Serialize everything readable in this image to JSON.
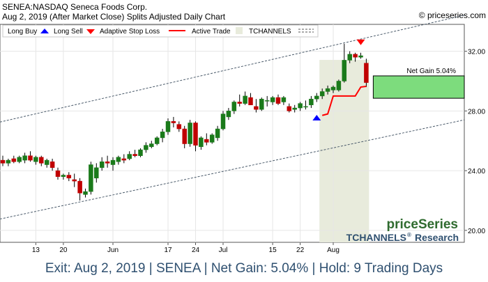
{
  "header": {
    "line1": "SENEA:NASDAQ Seneca Foods Corp.",
    "line2": "Aug 2, 2019 (After Market Close)  Splits Adjusted Daily Chart",
    "copyright": "© priceseries.com"
  },
  "legend": {
    "long_buy": "Long Buy",
    "long_sell": "Long Sell",
    "stop_loss": "Adaptive Stop Loss",
    "active_trade": "Active Trade",
    "tchannels": "TCHANNELS"
  },
  "net_gain_label": "Net Gain 5.04%",
  "watermark": {
    "brand": "priceSeries",
    "tchannels": "TCHANNELS",
    "research": "Research",
    "reg": "®"
  },
  "footer": "Exit: Aug 2, 2019 | SENEA | Net Gain: 5.04% | Hold: 9 Trading Days",
  "colors": {
    "up": "#1a7a1a",
    "down": "#c00000",
    "stop": "#ff0000",
    "active_band": "#e8ebdc",
    "gain_box": "#7ddc7d",
    "buy_arrow": "#0000ff",
    "sell_arrow": "#ff0000",
    "footer_text": "#2f5070"
  },
  "chart_data": {
    "type": "candlestick",
    "ylim": [
      19.2,
      33.8
    ],
    "y_ticks": [
      "32.00",
      "28.00",
      "24.00",
      "20.00"
    ],
    "y_tick_values": [
      32,
      28,
      24,
      20
    ],
    "x_tick_labels": [
      "13",
      "20",
      "Jun",
      "17",
      "24",
      "Jul",
      "15",
      "22",
      "Aug"
    ],
    "x_tick_index": [
      6,
      11,
      20,
      30,
      35,
      40,
      49,
      54,
      60
    ],
    "candles": [
      {
        "o": 24.7,
        "h": 25.0,
        "l": 24.3,
        "c": 24.5
      },
      {
        "o": 24.5,
        "h": 24.8,
        "l": 24.3,
        "c": 24.7
      },
      {
        "o": 24.8,
        "h": 25.0,
        "l": 24.5,
        "c": 24.6
      },
      {
        "o": 24.6,
        "h": 25.0,
        "l": 24.5,
        "c": 24.9
      },
      {
        "o": 24.7,
        "h": 25.2,
        "l": 24.5,
        "c": 25.0
      },
      {
        "o": 25.0,
        "h": 25.3,
        "l": 24.6,
        "c": 24.7
      },
      {
        "o": 24.6,
        "h": 25.0,
        "l": 24.4,
        "c": 24.9
      },
      {
        "o": 24.9,
        "h": 25.0,
        "l": 24.3,
        "c": 24.5
      },
      {
        "o": 24.4,
        "h": 24.8,
        "l": 24.2,
        "c": 24.7
      },
      {
        "o": 24.6,
        "h": 24.8,
        "l": 24.0,
        "c": 24.2
      },
      {
        "o": 24.0,
        "h": 24.2,
        "l": 23.4,
        "c": 23.6
      },
      {
        "o": 23.6,
        "h": 23.8,
        "l": 23.4,
        "c": 23.7
      },
      {
        "o": 23.7,
        "h": 23.9,
        "l": 23.3,
        "c": 23.5
      },
      {
        "o": 23.4,
        "h": 23.8,
        "l": 22.9,
        "c": 23.3
      },
      {
        "o": 23.3,
        "h": 23.5,
        "l": 22.0,
        "c": 22.5
      },
      {
        "o": 22.4,
        "h": 22.8,
        "l": 22.2,
        "c": 22.6
      },
      {
        "o": 22.6,
        "h": 24.6,
        "l": 22.4,
        "c": 24.4
      },
      {
        "o": 23.5,
        "h": 24.5,
        "l": 23.2,
        "c": 24.2
      },
      {
        "o": 24.2,
        "h": 24.9,
        "l": 24.0,
        "c": 24.6
      },
      {
        "o": 24.6,
        "h": 25.0,
        "l": 24.2,
        "c": 24.5
      },
      {
        "o": 24.4,
        "h": 24.9,
        "l": 24.0,
        "c": 24.7
      },
      {
        "o": 24.6,
        "h": 25.0,
        "l": 24.4,
        "c": 24.9
      },
      {
        "o": 24.8,
        "h": 25.1,
        "l": 24.5,
        "c": 24.7
      },
      {
        "o": 24.8,
        "h": 25.3,
        "l": 24.7,
        "c": 25.1
      },
      {
        "o": 25.1,
        "h": 25.4,
        "l": 24.9,
        "c": 25.0
      },
      {
        "o": 25.0,
        "h": 25.5,
        "l": 24.9,
        "c": 25.4
      },
      {
        "o": 25.4,
        "h": 25.9,
        "l": 25.2,
        "c": 25.7
      },
      {
        "o": 25.6,
        "h": 26.0,
        "l": 25.5,
        "c": 25.8
      },
      {
        "o": 25.8,
        "h": 26.3,
        "l": 25.7,
        "c": 26.2
      },
      {
        "o": 26.2,
        "h": 26.8,
        "l": 25.9,
        "c": 26.6
      },
      {
        "o": 26.6,
        "h": 27.5,
        "l": 26.4,
        "c": 27.3
      },
      {
        "o": 27.3,
        "h": 27.6,
        "l": 26.9,
        "c": 27.2
      },
      {
        "o": 27.1,
        "h": 27.3,
        "l": 26.6,
        "c": 26.8
      },
      {
        "o": 26.8,
        "h": 27.0,
        "l": 25.5,
        "c": 25.8
      },
      {
        "o": 25.8,
        "h": 27.4,
        "l": 25.6,
        "c": 27.2
      },
      {
        "o": 27.2,
        "h": 27.3,
        "l": 25.3,
        "c": 25.7
      },
      {
        "o": 25.6,
        "h": 26.3,
        "l": 25.4,
        "c": 26.2
      },
      {
        "o": 26.1,
        "h": 26.5,
        "l": 25.7,
        "c": 25.9
      },
      {
        "o": 25.9,
        "h": 26.5,
        "l": 25.8,
        "c": 26.4
      },
      {
        "o": 26.2,
        "h": 27.0,
        "l": 26.0,
        "c": 26.8
      },
      {
        "o": 26.8,
        "h": 28.0,
        "l": 26.7,
        "c": 27.8
      },
      {
        "o": 27.6,
        "h": 28.2,
        "l": 27.4,
        "c": 28.0
      },
      {
        "o": 28.0,
        "h": 28.7,
        "l": 27.8,
        "c": 28.6
      },
      {
        "o": 28.6,
        "h": 29.1,
        "l": 28.3,
        "c": 28.5
      },
      {
        "o": 28.5,
        "h": 29.3,
        "l": 28.4,
        "c": 29.0
      },
      {
        "o": 28.9,
        "h": 29.2,
        "l": 28.5,
        "c": 28.4
      },
      {
        "o": 28.3,
        "h": 28.8,
        "l": 27.9,
        "c": 28.1
      },
      {
        "o": 28.1,
        "h": 28.9,
        "l": 28.0,
        "c": 28.8
      },
      {
        "o": 28.7,
        "h": 29.0,
        "l": 28.3,
        "c": 28.7
      },
      {
        "o": 28.6,
        "h": 29.0,
        "l": 28.4,
        "c": 28.9
      },
      {
        "o": 28.9,
        "h": 29.1,
        "l": 28.4,
        "c": 28.5
      },
      {
        "o": 28.6,
        "h": 29.0,
        "l": 28.4,
        "c": 28.9
      },
      {
        "o": 28.3,
        "h": 28.5,
        "l": 27.9,
        "c": 28.0
      },
      {
        "o": 28.1,
        "h": 28.4,
        "l": 27.9,
        "c": 28.2
      },
      {
        "o": 28.2,
        "h": 28.6,
        "l": 28.0,
        "c": 28.5
      },
      {
        "o": 28.3,
        "h": 28.7,
        "l": 28.1,
        "c": 28.3
      },
      {
        "o": 28.4,
        "h": 29.0,
        "l": 28.2,
        "c": 28.8
      },
      {
        "o": 28.8,
        "h": 29.2,
        "l": 28.6,
        "c": 29.0
      },
      {
        "o": 29.0,
        "h": 29.5,
        "l": 28.8,
        "c": 29.3
      },
      {
        "o": 29.3,
        "h": 29.7,
        "l": 29.1,
        "c": 29.5
      },
      {
        "o": 29.4,
        "h": 29.7,
        "l": 29.2,
        "c": 29.6
      },
      {
        "o": 29.4,
        "h": 30.1,
        "l": 29.3,
        "c": 30.0
      },
      {
        "o": 30.0,
        "h": 32.5,
        "l": 29.9,
        "c": 31.4
      },
      {
        "o": 31.4,
        "h": 32.0,
        "l": 31.2,
        "c": 31.8
      },
      {
        "o": 31.8,
        "h": 31.9,
        "l": 31.3,
        "c": 31.6
      },
      {
        "o": 31.6,
        "h": 31.9,
        "l": 31.5,
        "c": 31.7
      },
      {
        "o": 31.2,
        "h": 31.5,
        "l": 29.6,
        "c": 29.9
      }
    ],
    "trade": {
      "entry_index": 58,
      "exit_index": 66,
      "buy_price": 27.5,
      "sell_price": 32.6,
      "net_gain_pct": 5.04,
      "gain_range": [
        28.85,
        30.35
      ]
    },
    "stop_loss": [
      [
        58,
        27.7
      ],
      [
        59,
        27.8
      ],
      [
        60,
        29.0
      ],
      [
        61,
        29.0
      ],
      [
        62,
        29.0
      ],
      [
        63,
        29.0
      ],
      [
        64,
        29.0
      ],
      [
        65,
        29.6
      ],
      [
        66,
        29.65
      ]
    ],
    "channel": {
      "upper": [
        [
          0,
          27.3
        ],
        [
          66,
          32.9
        ]
      ],
      "lower": [
        [
          0,
          20.8
        ],
        [
          66,
          26.0
        ]
      ]
    }
  }
}
